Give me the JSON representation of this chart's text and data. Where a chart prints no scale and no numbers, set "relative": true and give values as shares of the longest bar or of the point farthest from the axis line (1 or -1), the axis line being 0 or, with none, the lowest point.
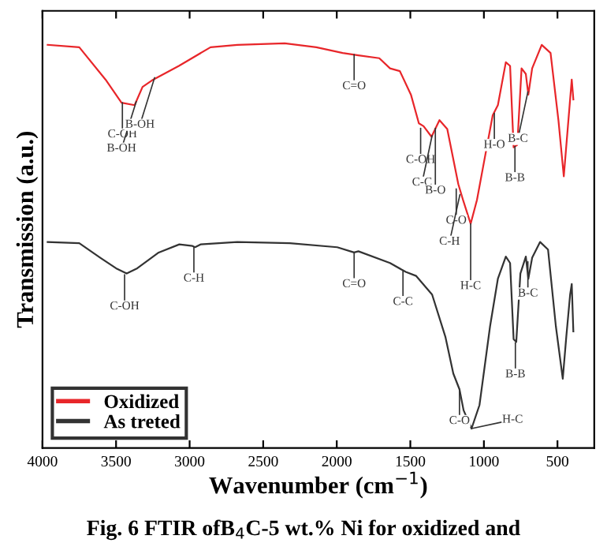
{
  "chart_data": {
    "type": "line",
    "relative": true,
    "xlabel": "Wavenumber (cm$^{−1}$)",
    "ylabel": "Transmission (a.u.)",
    "xlim": [
      4000,
      250
    ],
    "xticks": [
      4000,
      3500,
      3000,
      2500,
      2000,
      1500,
      1000,
      500
    ],
    "legend": "bottom left",
    "grid": false,
    "series": [
      {
        "name": "Oxidized",
        "color": "#e8262a",
        "x": [
          3965,
          3750,
          3571,
          3463,
          3374,
          3320,
          3248,
          3073,
          2858,
          2676,
          2354,
          2139,
          1960,
          1853,
          1711,
          1638,
          1571,
          1496,
          1442,
          1410,
          1356,
          1302,
          1249,
          1174,
          1142,
          1090,
          1047,
          994,
          940,
          905,
          851,
          822,
          798,
          773,
          744,
          715,
          698,
          672,
          607,
          547,
          493,
          457,
          429,
          403,
          392
        ],
        "values": [
          0.996,
          0.99,
          0.91,
          0.853,
          0.847,
          0.892,
          0.91,
          0.944,
          0.99,
          0.996,
          1.0,
          0.99,
          0.976,
          0.97,
          0.963,
          0.938,
          0.931,
          0.873,
          0.802,
          0.795,
          0.769,
          0.81,
          0.788,
          0.652,
          0.613,
          0.554,
          0.613,
          0.717,
          0.822,
          0.847,
          0.953,
          0.944,
          0.743,
          0.749,
          0.938,
          0.924,
          0.873,
          0.938,
          0.996,
          0.976,
          0.808,
          0.671,
          0.795,
          0.91,
          0.861
        ]
      },
      {
        "name": "As treted",
        "color": "#333333",
        "x": [
          3965,
          3750,
          3607,
          3500,
          3428,
          3356,
          3210,
          3070,
          2980,
          2963,
          2926,
          2676,
          2319,
          1997,
          1882,
          1853,
          1638,
          1531,
          1460,
          1352,
          1262,
          1208,
          1166,
          1138,
          1084,
          1030,
          958,
          905,
          851,
          822,
          798,
          780,
          752,
          715,
          698,
          672,
          618,
          564,
          511,
          464,
          440,
          414,
          403,
          392
        ],
        "values": [
          0.509,
          0.506,
          0.47,
          0.444,
          0.431,
          0.444,
          0.483,
          0.503,
          0.499,
          0.496,
          0.503,
          0.509,
          0.506,
          0.496,
          0.483,
          0.486,
          0.457,
          0.435,
          0.425,
          0.379,
          0.275,
          0.184,
          0.145,
          0.093,
          0.048,
          0.106,
          0.301,
          0.418,
          0.473,
          0.457,
          0.269,
          0.262,
          0.431,
          0.473,
          0.418,
          0.47,
          0.509,
          0.49,
          0.301,
          0.171,
          0.275,
          0.379,
          0.405,
          0.288
        ]
      }
    ],
    "annotations": [
      {
        "text": "C-OH",
        "x": 3457,
        "y": 0.853
      },
      {
        "text": "B-OH",
        "x": 3363,
        "y": 0.856
      },
      {
        "text": "B-OH",
        "x": 3238,
        "y": 0.915
      },
      {
        "text": "C=O",
        "x": 1882,
        "y": 0.972
      },
      {
        "text": "C-OH",
        "x": 1430,
        "y": 0.79
      },
      {
        "text": "C-C",
        "x": 1352,
        "y": 0.772
      },
      {
        "text": "B-O",
        "x": 1330,
        "y": 0.79
      },
      {
        "text": "C-O",
        "x": 1188,
        "y": 0.64
      },
      {
        "text": "C-H",
        "x": 1163,
        "y": 0.626
      },
      {
        "text": "H-C",
        "x": 1090,
        "y": 0.554
      },
      {
        "text": "H-O",
        "x": 929,
        "y": 0.827
      },
      {
        "text": "B-B",
        "x": 789,
        "y": 0.745
      },
      {
        "text": "B-C",
        "x": 701,
        "y": 0.88
      },
      {
        "text": "C-OH",
        "x": 3442,
        "y": 0.428
      },
      {
        "text": "C-H",
        "x": 2971,
        "y": 0.497
      },
      {
        "text": "C=O",
        "x": 1882,
        "y": 0.483
      },
      {
        "text": "C-C",
        "x": 1550,
        "y": 0.439
      },
      {
        "text": "C-O",
        "x": 1166,
        "y": 0.145
      },
      {
        "text": "H-C",
        "x": 1084,
        "y": 0.048
      },
      {
        "text": "B-B",
        "x": 786,
        "y": 0.26
      },
      {
        "text": "B-C",
        "x": 701,
        "y": 0.46
      },
      "Fig. 6 FTIR ofB$_{4}$C-5 wt.% Ni for oxidized and"
    ]
  }
}
